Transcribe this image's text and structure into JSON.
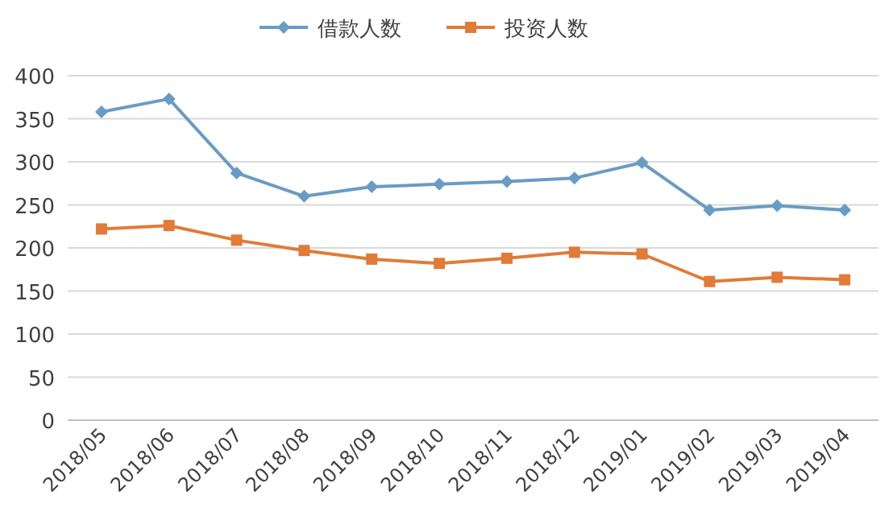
{
  "chart_data": {
    "type": "line",
    "categories": [
      "2018/05",
      "2018/06",
      "2018/07",
      "2018/08",
      "2018/09",
      "2018/10",
      "2018/11",
      "2018/12",
      "2019/01",
      "2019/02",
      "2019/03",
      "2019/04"
    ],
    "series": [
      {
        "name": "借款人数",
        "color": "#6a9bc3",
        "marker": "diamond",
        "values": [
          358,
          373,
          287,
          260,
          271,
          274,
          277,
          281,
          299,
          244,
          249,
          244
        ]
      },
      {
        "name": "投资人数",
        "color": "#e07b39",
        "marker": "square",
        "values": [
          222,
          226,
          209,
          197,
          187,
          182,
          188,
          195,
          193,
          161,
          166,
          163
        ]
      }
    ],
    "ylim": [
      0,
      400
    ],
    "yticks": [
      0,
      50,
      100,
      150,
      200,
      250,
      300,
      350,
      400
    ],
    "grid": "y",
    "legend": "top",
    "line_style": "solid"
  }
}
